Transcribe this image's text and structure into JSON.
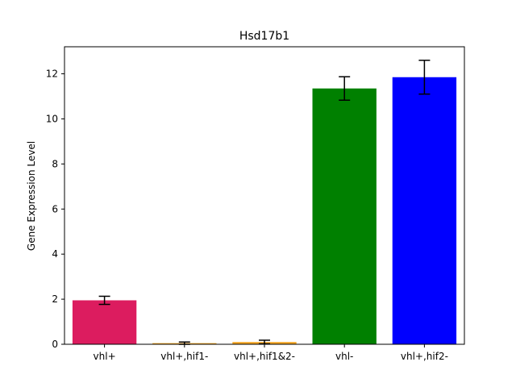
{
  "chart_data": {
    "type": "bar",
    "title": "Hsd17b1",
    "xlabel": "",
    "ylabel": "Gene Expression Level",
    "categories": [
      "vhl+",
      "vhl+,hif1-",
      "vhl+,hif1&2-",
      "vhl-",
      "vhl+,hif2-"
    ],
    "values": [
      1.95,
      0.05,
      0.1,
      11.35,
      11.85
    ],
    "errors": [
      0.18,
      0.05,
      0.08,
      0.52,
      0.75
    ],
    "colors": [
      "#dc1c5f",
      "#f5a623",
      "#f5a623",
      "#008000",
      "#0000ff"
    ],
    "ylim": [
      0,
      13.2
    ],
    "yticks": [
      0,
      2,
      4,
      6,
      8,
      10,
      12
    ],
    "grid": false,
    "legend": "none"
  }
}
